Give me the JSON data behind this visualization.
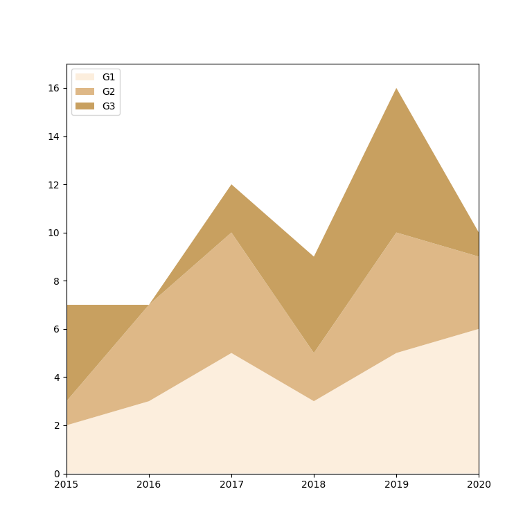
{
  "x": [
    2015,
    2016,
    2017,
    2018,
    2019,
    2020
  ],
  "G1": [
    2,
    3,
    5,
    3,
    5,
    6
  ],
  "G2": [
    1,
    4,
    5,
    2,
    5,
    3
  ],
  "G3": [
    4,
    0,
    2,
    4,
    6,
    1
  ],
  "colors": [
    "#fceedd",
    "#deb887",
    "#c8a060"
  ],
  "labels": [
    "G1",
    "G2",
    "G3"
  ],
  "ylim": [
    0,
    17
  ],
  "yticks": [
    0,
    2,
    4,
    6,
    8,
    10,
    12,
    14,
    16
  ],
  "xticks": [
    2015,
    2016,
    2017,
    2018,
    2019,
    2020
  ],
  "figsize": [
    7.68,
    7.68
  ],
  "dpi": 100
}
